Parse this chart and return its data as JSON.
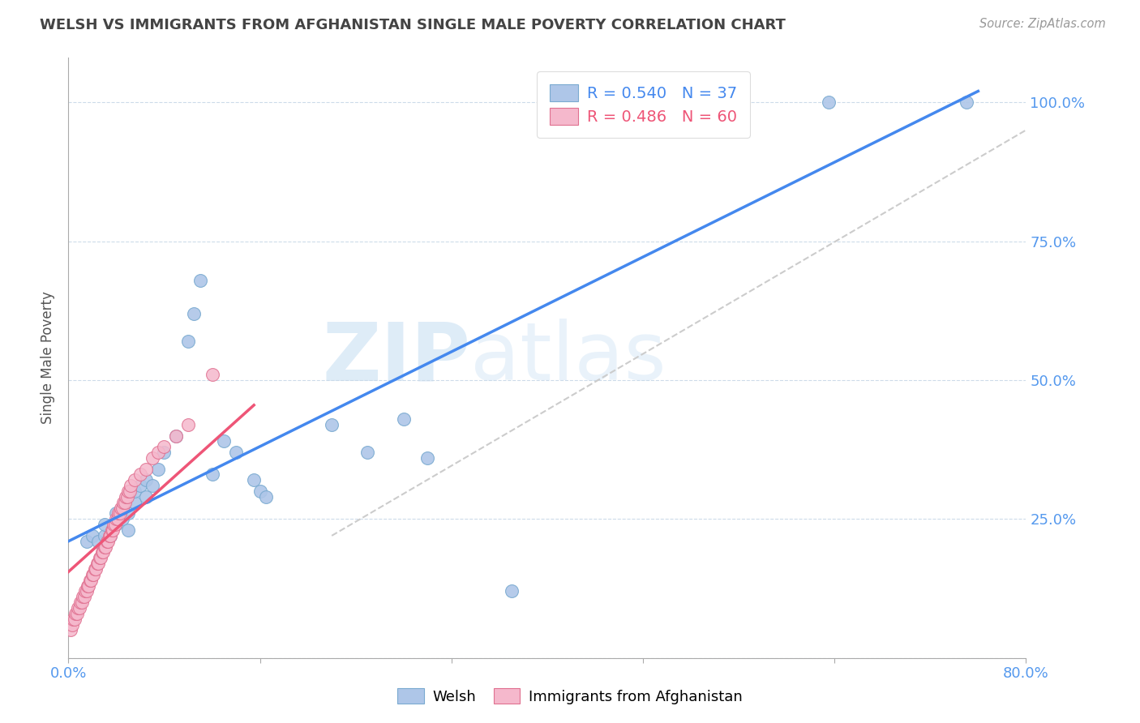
{
  "title": "WELSH VS IMMIGRANTS FROM AFGHANISTAN SINGLE MALE POVERTY CORRELATION CHART",
  "source": "Source: ZipAtlas.com",
  "ylabel": "Single Male Poverty",
  "xlim": [
    0.0,
    0.8
  ],
  "ylim": [
    0.0,
    1.08
  ],
  "welsh_color": "#aec6e8",
  "afghan_color": "#f5b8cc",
  "welsh_edge": "#7aaad0",
  "afghan_edge": "#e07090",
  "welsh_line_color": "#4488ee",
  "afghan_line_color": "#ee5577",
  "ref_line_color": "#cccccc",
  "legend_welsh_R": "R = 0.540",
  "legend_welsh_N": "N = 37",
  "legend_afghan_R": "R = 0.486",
  "legend_afghan_N": "N = 60",
  "watermark_zip": "ZIP",
  "watermark_atlas": "atlas",
  "title_color": "#444444",
  "axis_color": "#5599ee",
  "background_color": "#ffffff",
  "welsh_line_x0": 0.0,
  "welsh_line_y0": 0.21,
  "welsh_line_x1": 0.76,
  "welsh_line_y1": 1.02,
  "afghan_line_x0": 0.0,
  "afghan_line_y0": 0.155,
  "afghan_line_x1": 0.155,
  "afghan_line_y1": 0.455,
  "ref_line_x0": 0.22,
  "ref_line_y0": 0.22,
  "ref_line_x1": 0.8,
  "ref_line_y1": 0.95,
  "welsh_x": [
    0.015,
    0.02,
    0.025,
    0.03,
    0.03,
    0.035,
    0.04,
    0.04,
    0.045,
    0.045,
    0.05,
    0.05,
    0.055,
    0.055,
    0.06,
    0.065,
    0.065,
    0.07,
    0.075,
    0.08,
    0.09,
    0.1,
    0.105,
    0.11,
    0.12,
    0.13,
    0.14,
    0.155,
    0.16,
    0.165,
    0.22,
    0.25,
    0.28,
    0.3,
    0.37,
    0.635,
    0.75
  ],
  "welsh_y": [
    0.21,
    0.22,
    0.21,
    0.22,
    0.24,
    0.22,
    0.24,
    0.26,
    0.25,
    0.27,
    0.23,
    0.26,
    0.28,
    0.3,
    0.31,
    0.29,
    0.32,
    0.31,
    0.34,
    0.37,
    0.4,
    0.57,
    0.62,
    0.68,
    0.33,
    0.39,
    0.37,
    0.32,
    0.3,
    0.29,
    0.42,
    0.37,
    0.43,
    0.36,
    0.12,
    1.0,
    1.0
  ],
  "afghan_x": [
    0.002,
    0.003,
    0.004,
    0.005,
    0.006,
    0.007,
    0.008,
    0.009,
    0.01,
    0.011,
    0.012,
    0.013,
    0.014,
    0.015,
    0.016,
    0.017,
    0.018,
    0.019,
    0.02,
    0.021,
    0.022,
    0.023,
    0.024,
    0.025,
    0.026,
    0.027,
    0.028,
    0.029,
    0.03,
    0.031,
    0.032,
    0.033,
    0.034,
    0.035,
    0.036,
    0.037,
    0.038,
    0.039,
    0.04,
    0.041,
    0.042,
    0.043,
    0.044,
    0.045,
    0.046,
    0.047,
    0.048,
    0.049,
    0.05,
    0.051,
    0.052,
    0.055,
    0.06,
    0.065,
    0.07,
    0.075,
    0.08,
    0.09,
    0.1,
    0.12
  ],
  "afghan_y": [
    0.05,
    0.06,
    0.07,
    0.07,
    0.08,
    0.08,
    0.09,
    0.09,
    0.1,
    0.1,
    0.11,
    0.11,
    0.12,
    0.12,
    0.13,
    0.13,
    0.14,
    0.14,
    0.15,
    0.15,
    0.16,
    0.16,
    0.17,
    0.17,
    0.18,
    0.18,
    0.19,
    0.19,
    0.2,
    0.2,
    0.21,
    0.21,
    0.22,
    0.22,
    0.23,
    0.23,
    0.24,
    0.24,
    0.25,
    0.25,
    0.26,
    0.26,
    0.27,
    0.27,
    0.28,
    0.28,
    0.29,
    0.29,
    0.3,
    0.3,
    0.31,
    0.32,
    0.33,
    0.34,
    0.36,
    0.37,
    0.38,
    0.4,
    0.42,
    0.51
  ]
}
